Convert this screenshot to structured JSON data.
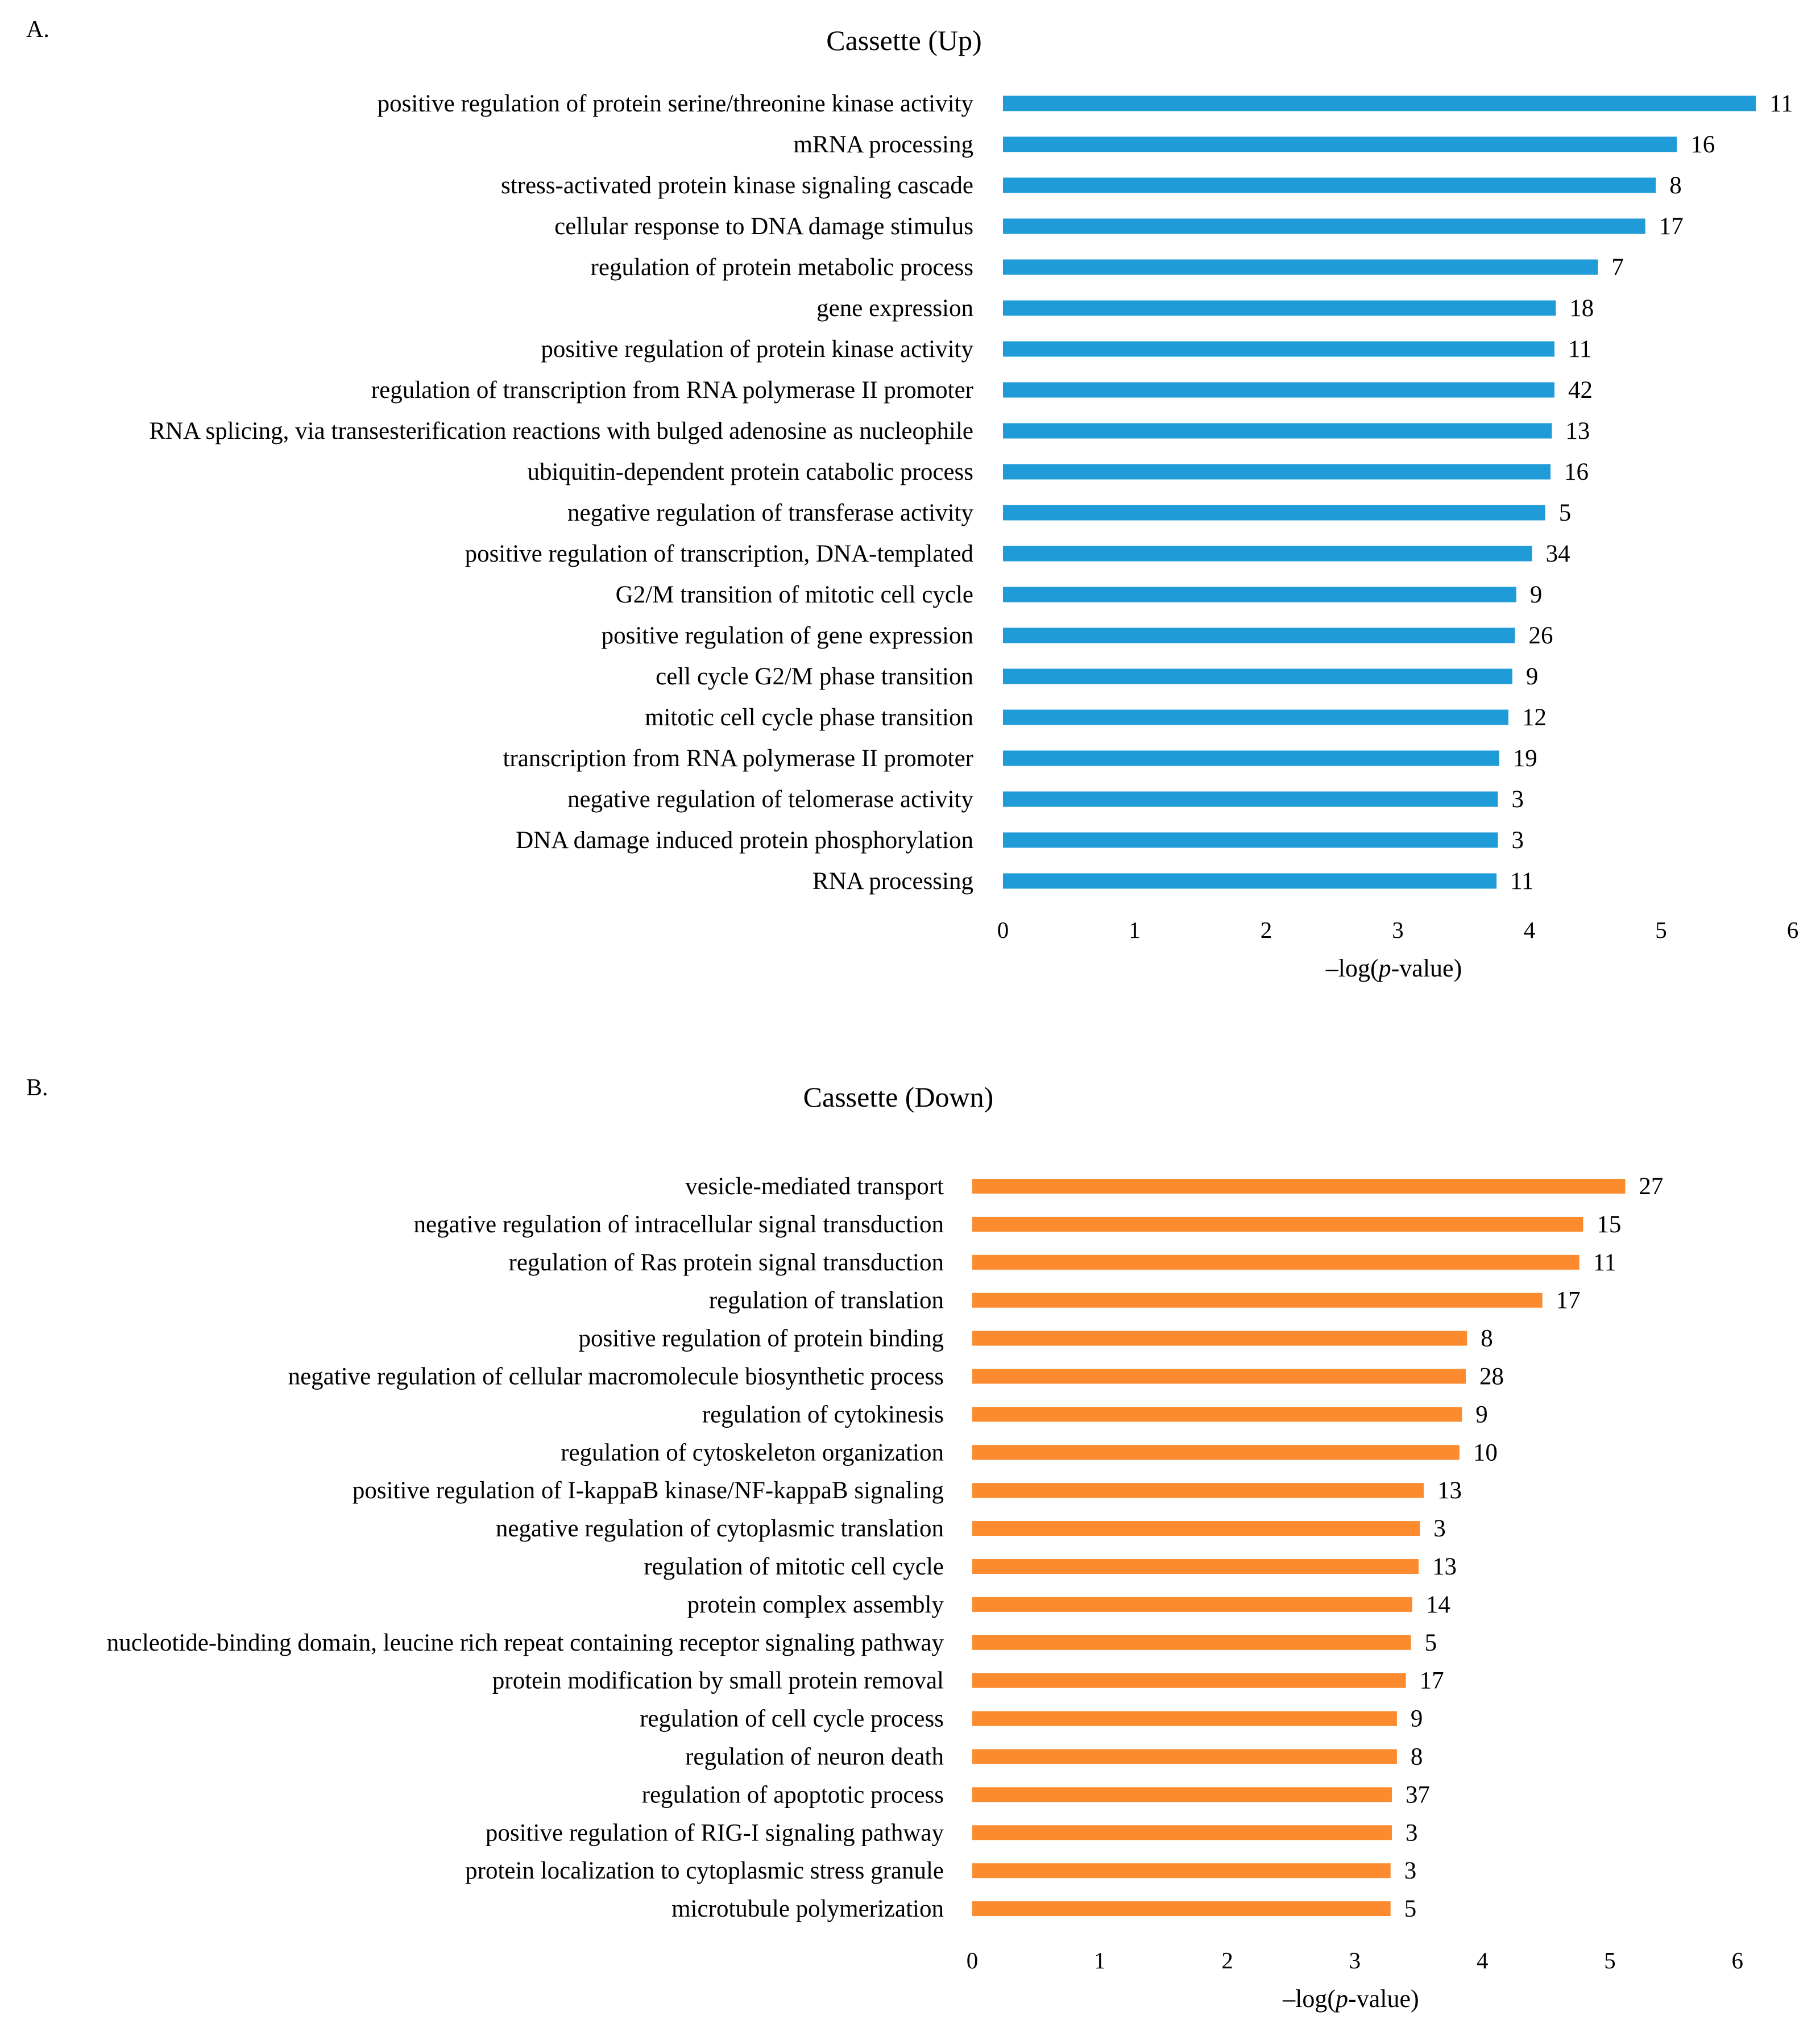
{
  "chart_data": [
    {
      "panel": "A.",
      "type": "bar",
      "orientation": "horizontal",
      "title": "Cassette (Up)",
      "xlabel_prefix": "–log(",
      "xlabel_italic": "p",
      "xlabel_suffix": "-value)",
      "xlim": [
        0,
        6
      ],
      "xticks": [
        0,
        1,
        2,
        3,
        4,
        5,
        6
      ],
      "color": "#1f9bd8",
      "categories": [
        "positive regulation of protein serine/threonine kinase activity",
        "mRNA processing",
        "stress-activated protein kinase signaling cascade",
        "cellular response to DNA damage stimulus",
        "regulation of protein metabolic process",
        "gene expression",
        "positive regulation of protein kinase activity",
        "regulation of transcription from RNA polymerase II promoter",
        "RNA splicing, via transesterification reactions with bulged adenosine as nucleophile",
        "ubiquitin-dependent protein catabolic process",
        "negative regulation of transferase activity",
        "positive regulation of transcription, DNA-templated",
        "G2/M transition of mitotic cell cycle",
        "positive regulation of gene expression",
        "cell cycle G2/M phase transition",
        "mitotic cell cycle phase transition",
        "transcription from RNA polymerase II promoter",
        "negative regulation of telomerase activity",
        "DNA damage induced protein phosphorylation",
        "RNA processing"
      ],
      "values": [
        5.72,
        5.12,
        4.96,
        4.88,
        4.52,
        4.2,
        4.19,
        4.19,
        4.17,
        4.16,
        4.12,
        4.02,
        3.9,
        3.89,
        3.87,
        3.84,
        3.77,
        3.76,
        3.76,
        3.75
      ],
      "data_labels": [
        "11",
        "16",
        "8",
        "17",
        "7",
        "18",
        "11",
        "42",
        "13",
        "16",
        "5",
        "34",
        "9",
        "26",
        "9",
        "12",
        "19",
        "3",
        "3",
        "11"
      ]
    },
    {
      "panel": "B.",
      "type": "bar",
      "orientation": "horizontal",
      "title": "Cassette (Down)",
      "xlabel_prefix": "–log(",
      "xlabel_italic": "p",
      "xlabel_suffix": "-value)",
      "xlim": [
        0,
        6
      ],
      "xticks": [
        0,
        1,
        2,
        3,
        4,
        5,
        6
      ],
      "color": "#fb8b2e",
      "categories": [
        "vesicle-mediated transport",
        "negative regulation of intracellular signal transduction",
        "regulation of Ras protein signal transduction",
        "regulation of translation",
        "positive regulation of protein binding",
        "negative regulation of cellular macromolecule biosynthetic process",
        "regulation of cytokinesis",
        "regulation of cytoskeleton organization",
        "positive regulation of I-kappaB kinase/NF-kappaB signaling",
        "negative regulation of cytoplasmic translation",
        "regulation of mitotic cell cycle",
        "protein complex assembly",
        "nucleotide-binding domain, leucine rich repeat containing receptor signaling pathway",
        "protein modification by small protein removal",
        "regulation of cell cycle process",
        "regulation of neuron death",
        "regulation of apoptotic process",
        "positive regulation of RIG-I signaling pathway",
        "protein localization to cytoplasmic stress granule",
        "microtubule polymerization"
      ],
      "values": [
        5.12,
        4.79,
        4.76,
        4.47,
        3.88,
        3.87,
        3.84,
        3.82,
        3.54,
        3.51,
        3.5,
        3.45,
        3.44,
        3.4,
        3.33,
        3.33,
        3.29,
        3.29,
        3.28,
        3.28
      ],
      "data_labels": [
        "27",
        "15",
        "11",
        "17",
        "8",
        "28",
        "9",
        "10",
        "13",
        "3",
        "13",
        "14",
        "5",
        "17",
        "9",
        "8",
        "37",
        "3",
        "3",
        "5"
      ]
    }
  ]
}
